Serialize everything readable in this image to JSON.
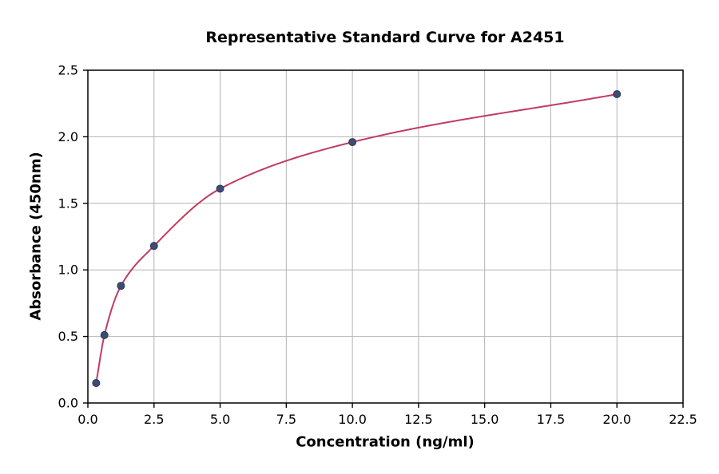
{
  "chart_data": {
    "type": "scatter",
    "title": "Representative Standard Curve for A2451",
    "xlabel": "Concentration (ng/ml)",
    "ylabel": "Absorbance (450nm)",
    "x": [
      0.313,
      0.625,
      1.25,
      2.5,
      5,
      10,
      20
    ],
    "y": [
      0.15,
      0.51,
      0.88,
      1.18,
      1.61,
      1.96,
      2.32
    ],
    "xlim": [
      0,
      22.5
    ],
    "ylim": [
      0,
      2.5
    ],
    "xticks": [
      0.0,
      2.5,
      5.0,
      7.5,
      10.0,
      12.5,
      15.0,
      17.5,
      20.0,
      22.5
    ],
    "yticks": [
      0.0,
      0.5,
      1.0,
      1.5,
      2.0,
      2.5
    ],
    "grid": true,
    "legend": "none",
    "curve": "smooth fit through data points",
    "colors": {
      "point": "#3c4c72",
      "point_edge": "#2e3a57",
      "line": "#c13b63",
      "grid": "#b3b3b3",
      "axis": "#000000",
      "text": "#000000",
      "background": "#ffffff"
    }
  }
}
